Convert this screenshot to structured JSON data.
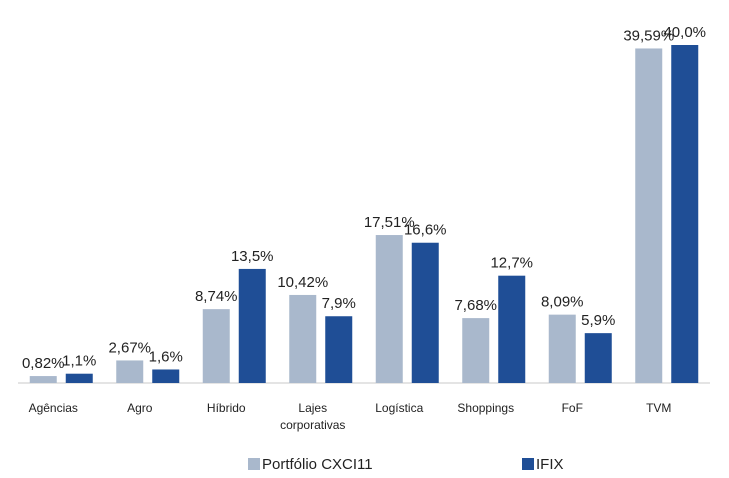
{
  "chart_data": {
    "type": "bar",
    "categories": [
      "Agências",
      "Agro",
      "Híbrido",
      "Lajes corporativas",
      "Logística",
      "Shoppings",
      "FoF",
      "TVM"
    ],
    "series": [
      {
        "name": "Portfólio CXCI11",
        "color": "#a9b8cc",
        "values": [
          0.82,
          2.67,
          8.74,
          10.42,
          17.51,
          7.68,
          8.09,
          39.59
        ],
        "value_labels": [
          "0,82%",
          "2,67%",
          "8,74%",
          "10,42%",
          "17,51%",
          "7,68%",
          "8,09%",
          "39,59%"
        ]
      },
      {
        "name": "IFIX",
        "color": "#1f4e96",
        "values": [
          1.1,
          1.6,
          13.5,
          7.9,
          16.6,
          12.7,
          5.9,
          40.0
        ],
        "value_labels": [
          "1,1%",
          "1,6%",
          "13,5%",
          "7,9%",
          "16,6%",
          "12,7%",
          "5,9%",
          "40,0%"
        ]
      }
    ]
  }
}
